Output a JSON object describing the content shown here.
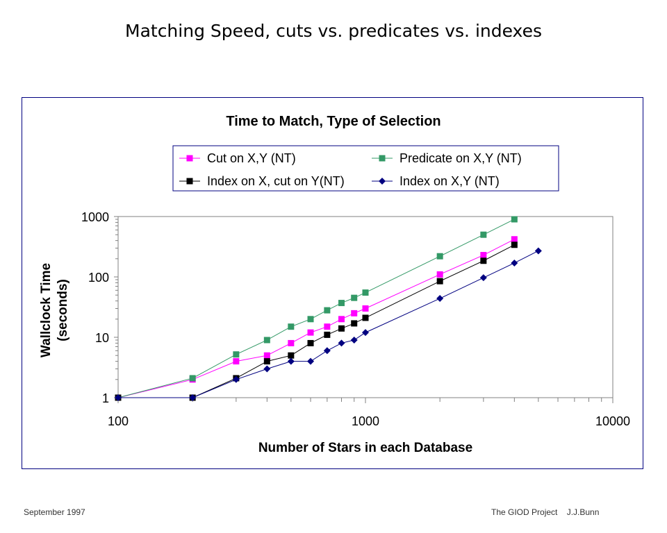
{
  "slide_title": "Matching Speed, cuts vs. predicates vs. indexes",
  "footer": {
    "date": "September 1997",
    "project": "The GIOD Project    J.J.Bunn"
  },
  "chart_data": {
    "type": "line",
    "title": "Time to Match, Type of Selection",
    "xlabel": "Number of Stars in each Database",
    "ylabel": "Wallclock Time",
    "ylabel2": "(seconds)",
    "xscale": "log",
    "yscale": "log",
    "xlim": [
      100,
      10000
    ],
    "ylim": [
      1,
      1000
    ],
    "xticks": [
      "100",
      "1000",
      "10000"
    ],
    "yticks": [
      "1",
      "10",
      "100",
      "1000"
    ],
    "legend_placement": "top",
    "series": [
      {
        "name": "Cut on X,Y (NT)",
        "color": "#ff00ff",
        "marker": "square",
        "x": [
          100,
          200,
          300,
          400,
          500,
          600,
          700,
          800,
          900,
          1000,
          2000,
          3000,
          4000
        ],
        "y": [
          1,
          2,
          4,
          5,
          8,
          12,
          15,
          20,
          25,
          30,
          110,
          230,
          420
        ]
      },
      {
        "name": "Predicate on X,Y (NT)",
        "color": "#339966",
        "marker": "square",
        "x": [
          100,
          200,
          300,
          400,
          500,
          600,
          700,
          800,
          900,
          1000,
          2000,
          3000,
          4000
        ],
        "y": [
          1,
          2.1,
          5.2,
          9,
          15,
          20,
          28,
          37,
          45,
          55,
          220,
          500,
          900
        ]
      },
      {
        "name": "Index on X, cut on Y(NT)",
        "color": "#000000",
        "marker": "square",
        "x": [
          100,
          200,
          300,
          400,
          500,
          600,
          700,
          800,
          900,
          1000,
          2000,
          3000,
          4000
        ],
        "y": [
          1,
          1,
          2.1,
          4,
          5,
          8,
          11,
          14,
          17,
          21,
          85,
          185,
          340
        ]
      },
      {
        "name": "Index on X,Y (NT)",
        "color": "#000080",
        "marker": "diamond",
        "x": [
          100,
          200,
          300,
          400,
          500,
          600,
          700,
          800,
          900,
          1000,
          2000,
          3000,
          4000,
          5000
        ],
        "y": [
          1,
          1,
          2,
          3,
          4,
          4,
          6,
          8,
          9,
          12,
          44,
          97,
          170,
          270
        ]
      }
    ]
  }
}
